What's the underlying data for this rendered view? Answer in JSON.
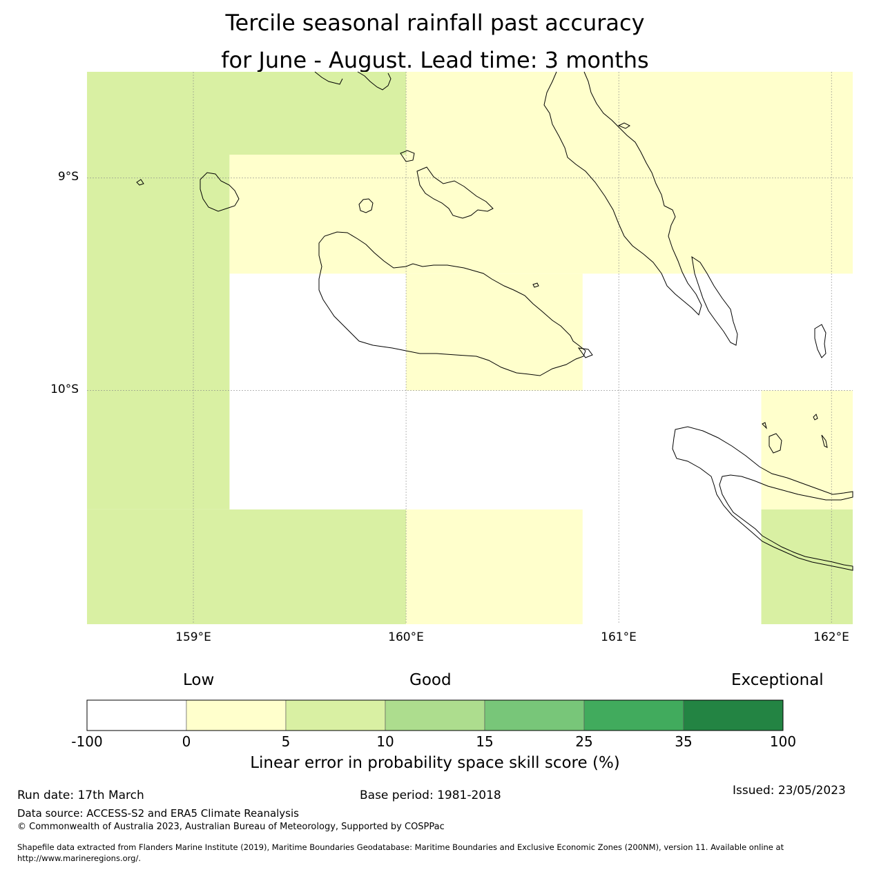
{
  "title": {
    "line1": "Tercile seasonal rainfall past accuracy",
    "line2": "for June - August. Lead time: 3 months"
  },
  "map": {
    "lat_ticks": [
      "9°S",
      "10°S"
    ],
    "lon_ticks": [
      "159°E",
      "160°E",
      "161°E",
      "162°E"
    ],
    "extent": {
      "lon_min": 158.5,
      "lon_max": 162.1,
      "lat_north": -8.5,
      "lat_south": -11.1
    },
    "grid_cells": [
      {
        "lon_min": 158.5,
        "lon_max": 160.0,
        "lat_north": -8.5,
        "lat_south": -8.89,
        "category": "5-10"
      },
      {
        "lon_min": 158.5,
        "lon_max": 159.17,
        "lat_north": -8.89,
        "lat_south": -10.56,
        "category": "5-10"
      },
      {
        "lon_min": 158.5,
        "lon_max": 160.0,
        "lat_north": -10.56,
        "lat_south": -11.1,
        "category": "5-10"
      },
      {
        "lon_min": 160.0,
        "lon_max": 162.1,
        "lat_north": -8.5,
        "lat_south": -8.89,
        "category": "0-5"
      },
      {
        "lon_min": 159.17,
        "lon_max": 162.1,
        "lat_north": -8.89,
        "lat_south": -9.45,
        "category": "0-5"
      },
      {
        "lon_min": 160.0,
        "lon_max": 160.83,
        "lat_north": -9.45,
        "lat_south": -10.0,
        "category": "0-5"
      },
      {
        "lon_min": 160.0,
        "lon_max": 160.83,
        "lat_north": -10.56,
        "lat_south": -11.1,
        "category": "0-5"
      },
      {
        "lon_min": 161.67,
        "lon_max": 162.1,
        "lat_north": -10.0,
        "lat_south": -10.56,
        "category": "0-5"
      },
      {
        "lon_min": 161.67,
        "lon_max": 162.1,
        "lat_north": -10.56,
        "lat_south": -11.1,
        "category": "5-10"
      }
    ]
  },
  "categories": {
    "low": "Low",
    "good": "Good",
    "exceptional": "Exceptional"
  },
  "colorbar": {
    "ticks": [
      "-100",
      "0",
      "5",
      "10",
      "15",
      "25",
      "35",
      "100"
    ],
    "colors": [
      "#ffffff",
      "#ffffcc",
      "#d9f0a3",
      "#addd8e",
      "#78c679",
      "#41ab5d",
      "#238443"
    ],
    "label": "Linear error in probability space skill score (%)"
  },
  "footer": {
    "run_date": "Run date: 17th March",
    "base_period": "Base period: 1981-2018",
    "issued": "Issued: 23/05/2023",
    "data_source": "Data source: ACCESS-S2 and ERA5 Climate Reanalysis",
    "copyright": "© Commonwealth of Australia 2023, Australian Bureau of Meteorology, Supported by COSPPac",
    "shapefile_line1": "Shapefile data extracted from Flanders Marine Institute (2019), Maritime Boundaries Geodatabase: Maritime Boundaries and Exclusive Economic Zones (200NM), version 11. Available online at",
    "shapefile_line2": "http://www.marineregions.org/."
  }
}
